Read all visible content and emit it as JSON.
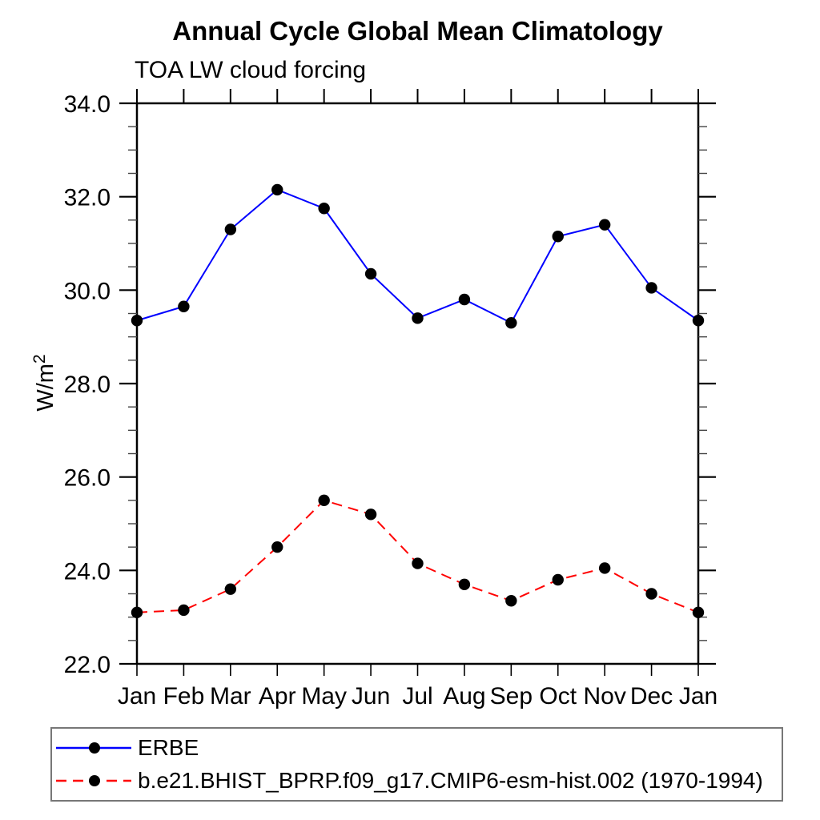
{
  "chart_data": {
    "type": "line",
    "title": "Annual Cycle Global Mean Climatology",
    "subtitle": "TOA LW cloud forcing",
    "ylabel": "W/m",
    "ylabel_exponent": "2",
    "xlabel": "",
    "ylim": [
      22.0,
      34.0
    ],
    "y_major_step": 2.0,
    "y_minor_step": 0.5,
    "y_tick_labels": [
      "34.0",
      "32.0",
      "30.0",
      "28.0",
      "26.0",
      "24.0",
      "22.0"
    ],
    "categories": [
      "Jan",
      "Feb",
      "Mar",
      "Apr",
      "May",
      "Jun",
      "Jul",
      "Aug",
      "Sep",
      "Oct",
      "Nov",
      "Dec",
      "Jan"
    ],
    "grid": false,
    "legend_position": "bottom-left",
    "series": [
      {
        "name": "ERBE",
        "line_color": "#0000ff",
        "line_style": "solid",
        "marker": "filled-circle",
        "marker_color": "#000000",
        "values": [
          29.35,
          29.65,
          31.3,
          32.15,
          31.75,
          30.35,
          29.4,
          29.8,
          29.3,
          31.15,
          31.4,
          30.05,
          29.35
        ]
      },
      {
        "name": "b.e21.BHIST_BPRP.f09_g17.CMIP6-esm-hist.002 (1970-1994)",
        "line_color": "#ff0000",
        "line_style": "dashed",
        "marker": "filled-circle",
        "marker_color": "#000000",
        "values": [
          23.1,
          23.15,
          23.6,
          24.5,
          25.5,
          25.2,
          24.15,
          23.7,
          23.35,
          23.8,
          24.05,
          23.5,
          23.1
        ]
      }
    ]
  },
  "colors": {
    "axis": "#000000",
    "minor_tick": "#444444",
    "legend_border": "#777777",
    "text": "#000000",
    "background": "#ffffff"
  }
}
